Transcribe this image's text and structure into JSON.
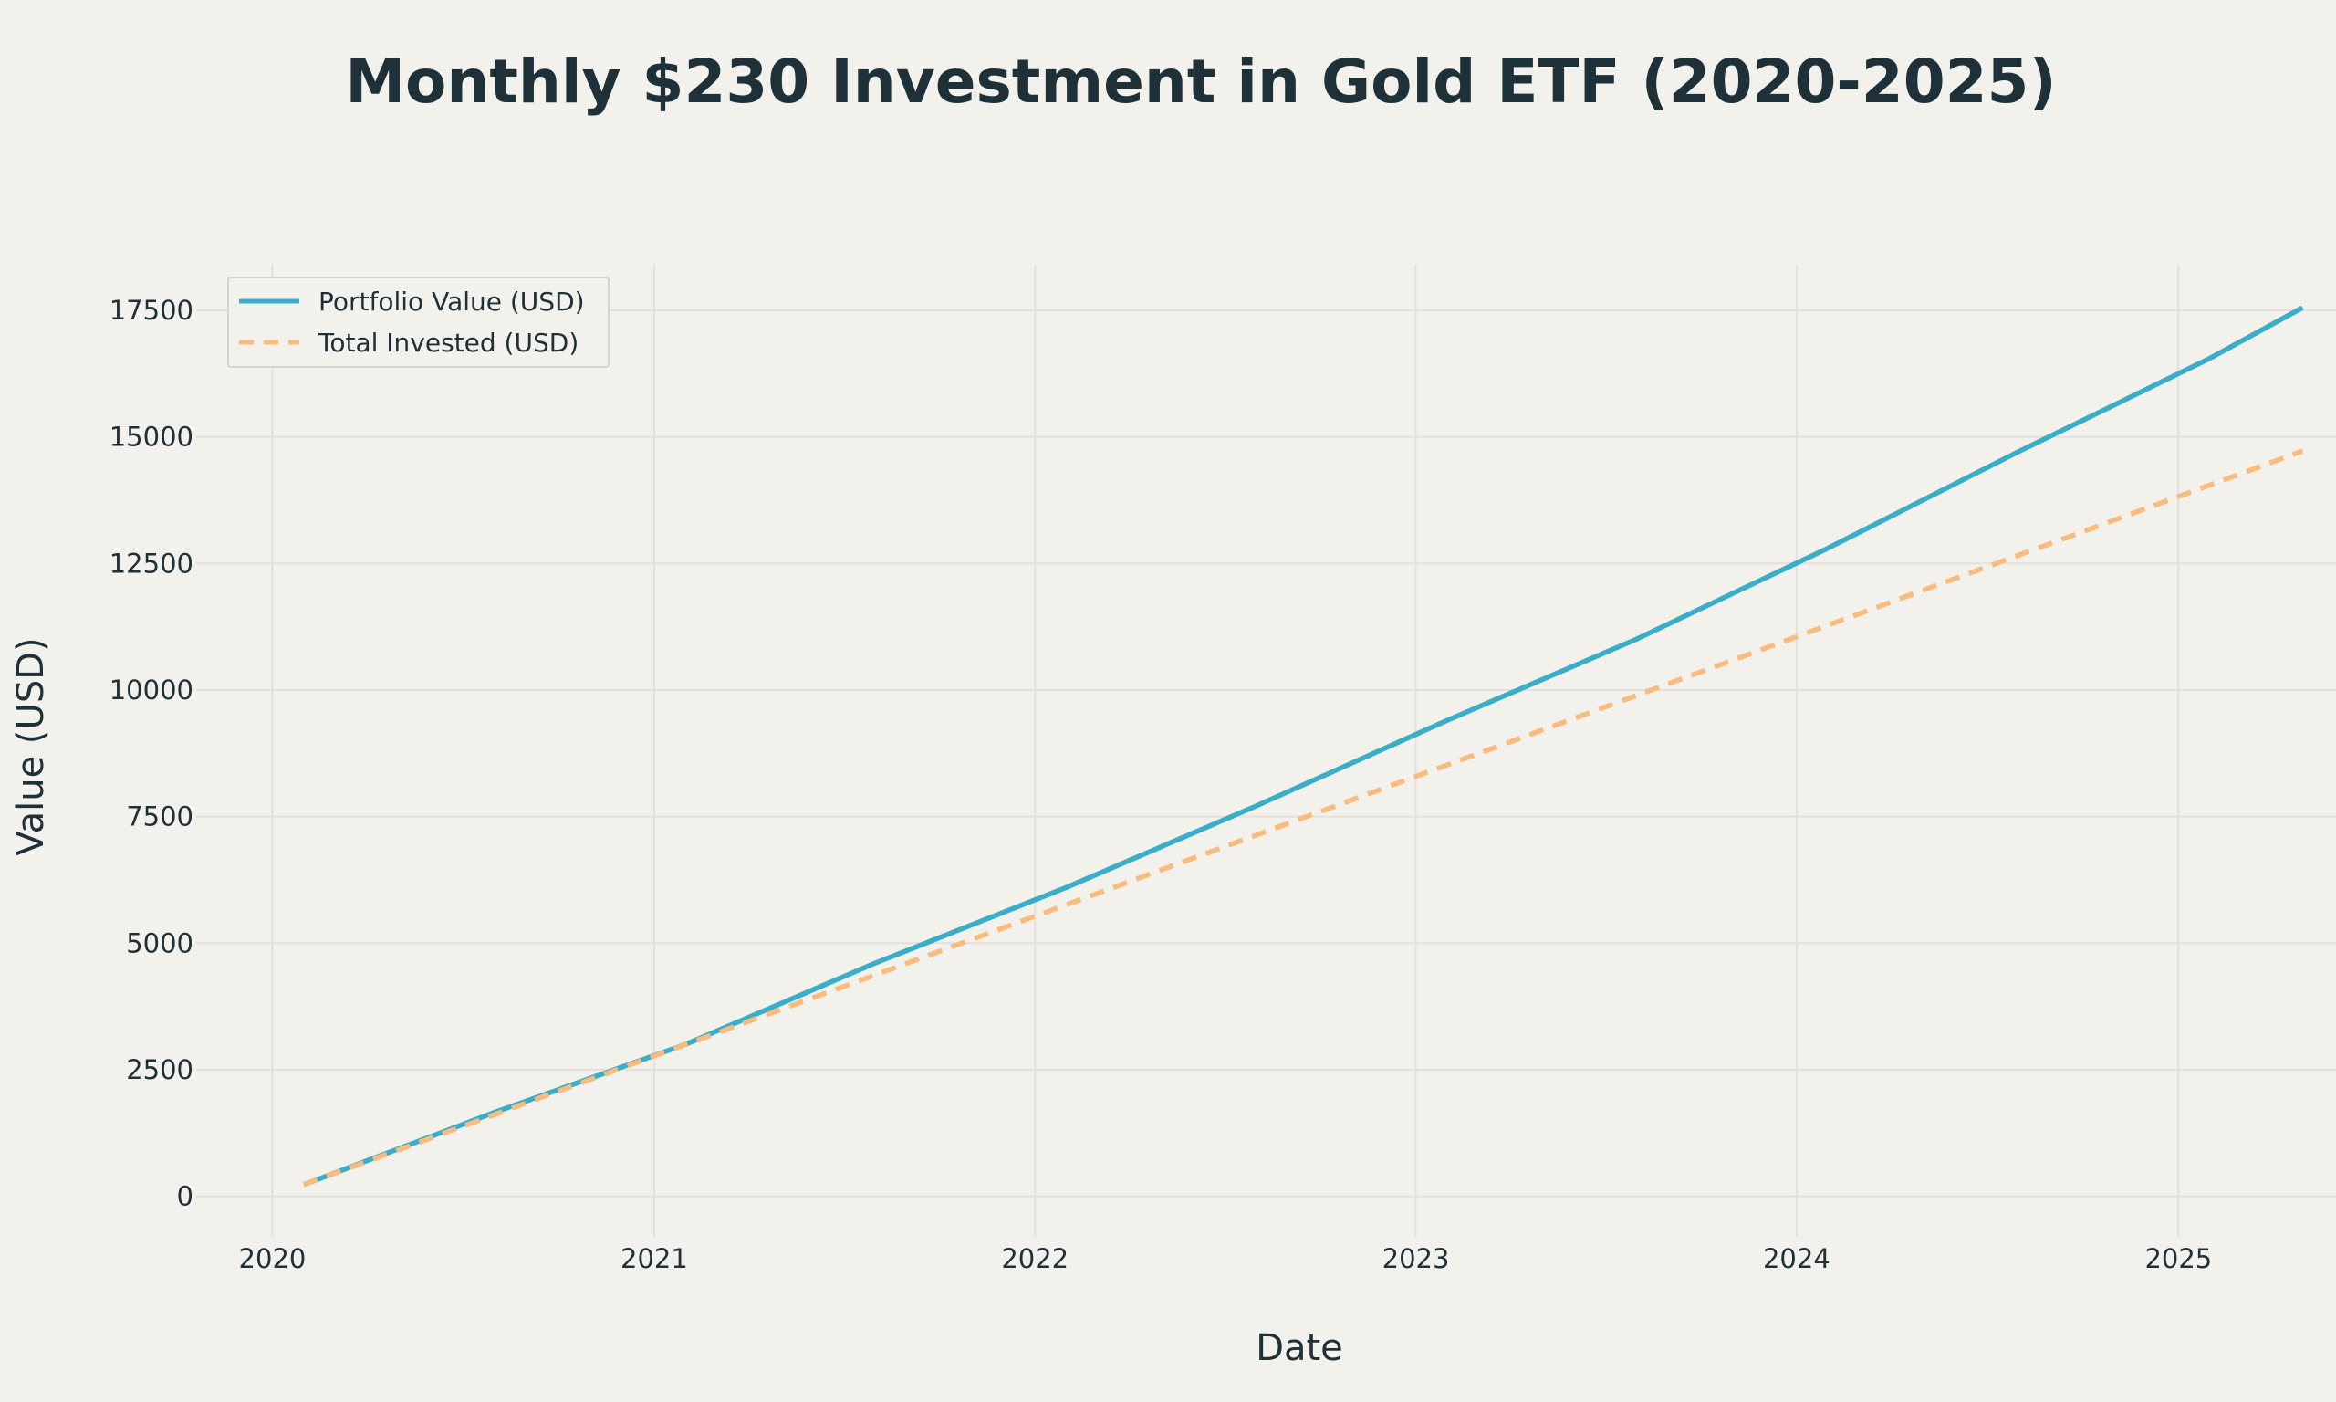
{
  "chart_data": {
    "type": "line",
    "title": "Monthly $230 Investment in Gold ETF (2020-2025)",
    "xlabel": "Date",
    "ylabel": "Value (USD)",
    "x_type": "date",
    "xlim": [
      "2019-10-20",
      "2025-06-01"
    ],
    "ylim": [
      -800,
      18400
    ],
    "x_ticks": [
      {
        "date": "2020-01-01",
        "label": "2020"
      },
      {
        "date": "2021-01-01",
        "label": "2021"
      },
      {
        "date": "2022-01-01",
        "label": "2022"
      },
      {
        "date": "2023-01-01",
        "label": "2023"
      },
      {
        "date": "2024-01-01",
        "label": "2024"
      },
      {
        "date": "2025-01-01",
        "label": "2025"
      }
    ],
    "y_ticks": [
      0,
      2500,
      5000,
      7500,
      10000,
      12500,
      15000,
      17500
    ],
    "grid": true,
    "legend": "top-left",
    "series": [
      {
        "name": "Portfolio Value (USD)",
        "color": "#3aaec8",
        "style": "solid",
        "points": [
          {
            "x": "2020-01-31",
            "y": 230
          },
          {
            "x": "2020-07-31",
            "y": 1650
          },
          {
            "x": "2021-01-31",
            "y": 3000
          },
          {
            "x": "2021-07-31",
            "y": 4600
          },
          {
            "x": "2022-01-31",
            "y": 6100
          },
          {
            "x": "2022-07-31",
            "y": 7700
          },
          {
            "x": "2023-01-31",
            "y": 9400
          },
          {
            "x": "2023-07-31",
            "y": 11000
          },
          {
            "x": "2024-01-31",
            "y": 12800
          },
          {
            "x": "2024-07-31",
            "y": 14700
          },
          {
            "x": "2025-01-31",
            "y": 16550
          },
          {
            "x": "2025-04-30",
            "y": 17550
          }
        ]
      },
      {
        "name": "Total Invested (USD)",
        "color": "#f9bb7e",
        "style": "dashed",
        "points": [
          {
            "x": "2020-01-31",
            "y": 230
          },
          {
            "x": "2025-04-30",
            "y": 14720
          }
        ]
      }
    ]
  }
}
